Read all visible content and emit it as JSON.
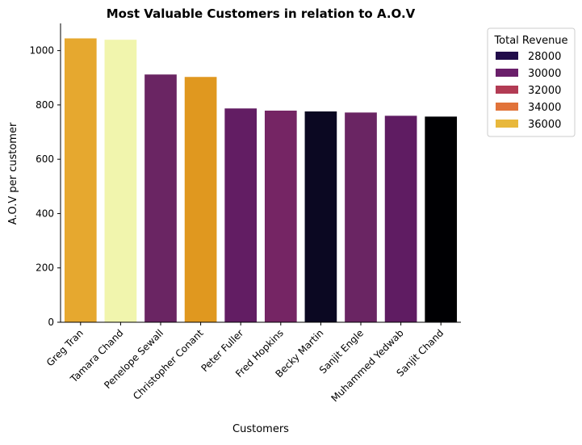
{
  "chart_data": {
    "type": "bar",
    "title": "Most Valuable Customers in relation to A.O.V",
    "xlabel": "Customers",
    "ylabel": "A.O.V per customer",
    "ylim": [
      0,
      1100
    ],
    "yticks": [
      0,
      200,
      400,
      600,
      800,
      1000
    ],
    "grid": false,
    "categories": [
      "Greg Tran",
      "Tamara Chand",
      "Penelope Sewall",
      "Christopher Conant",
      "Peter Fuller",
      "Fred Hopkins",
      "Becky Martin",
      "Sanjit Engle",
      "Muhammed Yedwab",
      "Sanjit Chand"
    ],
    "values": [
      1045,
      1040,
      912,
      903,
      787,
      779,
      776,
      772,
      760,
      757
    ],
    "bar_colors": [
      "#e6a82f",
      "#f1f5ad",
      "#6a2563",
      "#e0981f",
      "#621d63",
      "#752564",
      "#0b0822",
      "#6a2563",
      "#5f1c62",
      "#000003"
    ],
    "legend": {
      "title": "Total Revenue",
      "placement": "outside-top-right",
      "entries": [
        {
          "label": "28000",
          "color": "#210c4a"
        },
        {
          "label": "30000",
          "color": "#6a1f6a"
        },
        {
          "label": "32000",
          "color": "#b23b54"
        },
        {
          "label": "34000",
          "color": "#e1733a"
        },
        {
          "label": "36000",
          "color": "#e8b83c"
        }
      ]
    }
  }
}
